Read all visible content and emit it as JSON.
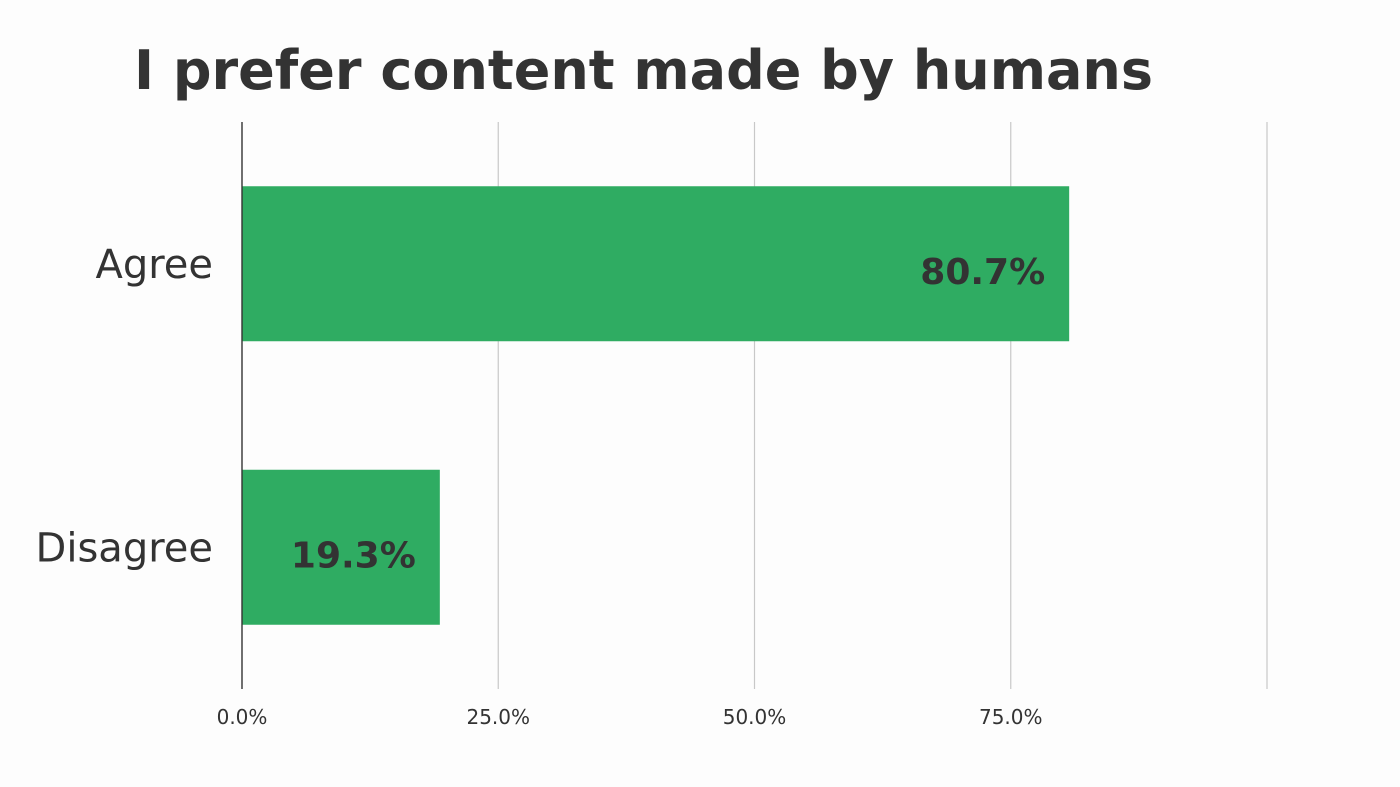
{
  "chart_data": {
    "type": "bar",
    "orientation": "horizontal",
    "title": "I prefer content made by humans",
    "xlabel": "",
    "ylabel": "",
    "categories": [
      "Agree",
      "Disagree"
    ],
    "values": [
      80.7,
      19.3
    ],
    "data_labels": [
      "80.7%",
      "19.3%"
    ],
    "xlim": [
      0,
      100
    ],
    "x_ticks": [
      0,
      25,
      50,
      75,
      100
    ],
    "x_tick_labels": [
      "0.0%",
      "25.0%",
      "50.0%",
      "75.0%",
      ""
    ],
    "grid": true,
    "legend": "none",
    "colors": {
      "bar": "#2fac62",
      "text": "#333333",
      "grid": "#c8c8c8",
      "axis": "#333333",
      "background": "#fdfdfd"
    }
  }
}
